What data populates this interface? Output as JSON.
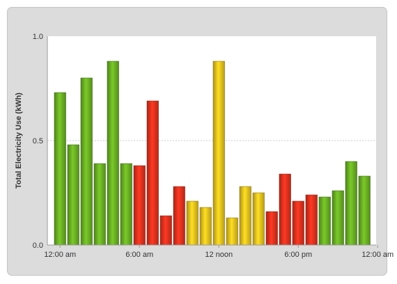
{
  "chart_data": {
    "type": "bar",
    "ylabel": "Total Electricity Use (kWh)",
    "xlabel": "",
    "ylim": [
      0,
      1.0
    ],
    "yticks": [
      {
        "value": 0.0,
        "label": "0.0"
      },
      {
        "value": 0.5,
        "label": "0.5"
      },
      {
        "value": 1.0,
        "label": "1.0"
      }
    ],
    "xticks": [
      {
        "index": -0.5,
        "label": "12:00 am"
      },
      {
        "index": 5.5,
        "label": "6:00 am"
      },
      {
        "index": 11.5,
        "label": "12 noon"
      },
      {
        "index": 17.5,
        "label": "6:00 pm"
      },
      {
        "index": 23.5,
        "label": "12:00 am"
      }
    ],
    "grid": {
      "y": [
        0.5
      ]
    },
    "legend": "none",
    "colors": {
      "green": "#6ab024",
      "red": "#e0321e",
      "yellow": "#e6c21e"
    },
    "values": [
      0.73,
      0.48,
      0.8,
      0.39,
      0.88,
      0.39,
      0.38,
      0.69,
      0.14,
      0.28,
      0.21,
      0.18,
      0.88,
      0.13,
      0.28,
      0.25,
      0.16,
      0.34,
      0.21,
      0.24,
      0.23,
      0.26,
      0.4,
      0.33
    ],
    "bar_colors": [
      "green",
      "green",
      "green",
      "green",
      "green",
      "green",
      "red",
      "red",
      "red",
      "red",
      "yellow",
      "yellow",
      "yellow",
      "yellow",
      "yellow",
      "yellow",
      "red",
      "red",
      "red",
      "red",
      "green",
      "green",
      "green",
      "green"
    ]
  }
}
